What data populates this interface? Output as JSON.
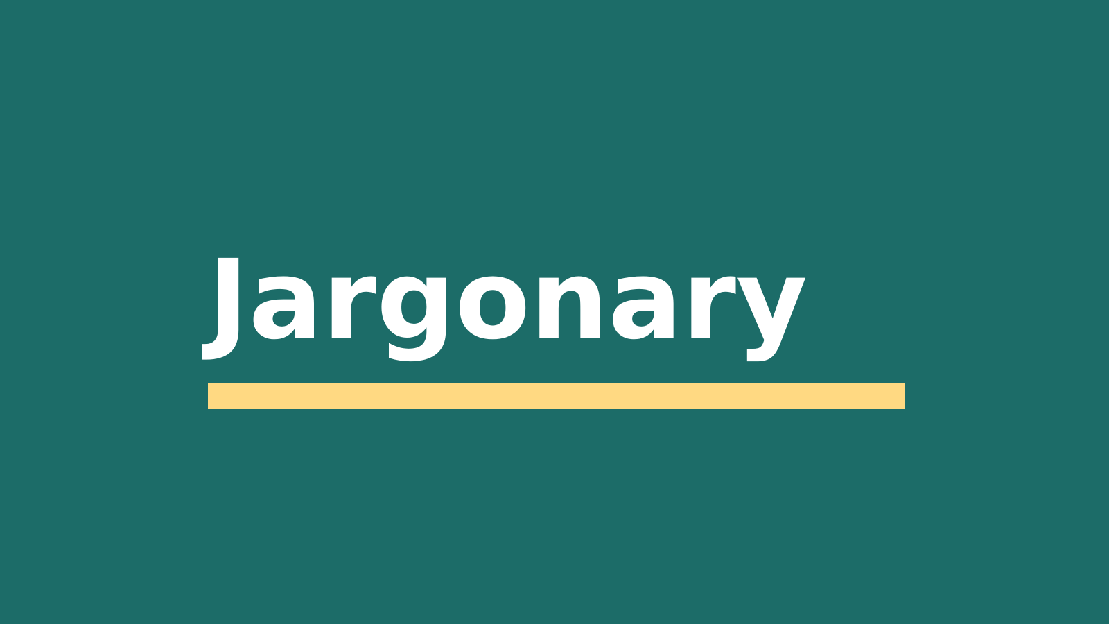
{
  "brand": {
    "wordmark": "Jargonary"
  },
  "colors": {
    "background": "#1c6c68",
    "wordmark": "#ffffff",
    "underline": "#ffd982"
  }
}
